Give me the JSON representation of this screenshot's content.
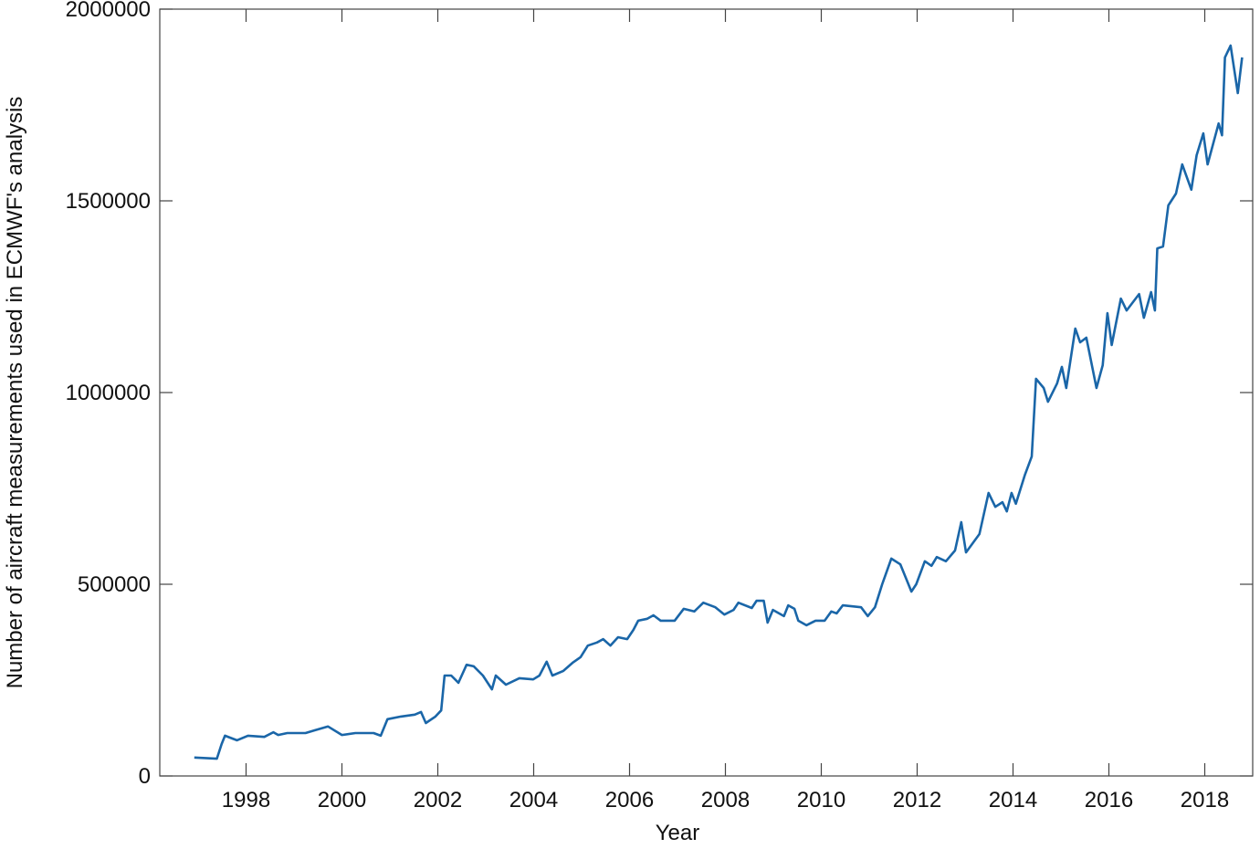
{
  "chart_data": {
    "type": "line",
    "xlabel": "Year",
    "ylabel": "Number of aircraft measurements used in ECMWF's analysis",
    "xlim": [
      1996.2,
      2019
    ],
    "xticks": [
      1998,
      2000,
      2002,
      2004,
      2006,
      2008,
      2010,
      2012,
      2014,
      2016,
      2018
    ],
    "ylim": [
      0,
      2000000
    ],
    "yticks": [
      0,
      500000,
      1000000,
      1500000,
      2000000
    ],
    "series": [
      {
        "color": "#1a66a8",
        "x": [
          1996.92,
          1997.39,
          1997.49,
          1997.56,
          1997.81,
          1998.04,
          1998.38,
          1998.57,
          1998.67,
          1998.86,
          1999.24,
          1999.43,
          1999.71,
          2000.0,
          2000.28,
          2000.66,
          2000.81,
          2000.95,
          2001.23,
          2001.52,
          2001.65,
          2001.75,
          2001.95,
          2002.07,
          2002.14,
          2002.28,
          2002.43,
          2002.6,
          2002.75,
          2002.94,
          2003.13,
          2003.21,
          2003.42,
          2003.7,
          2003.99,
          2004.12,
          2004.27,
          2004.39,
          2004.62,
          2004.81,
          2004.98,
          2005.13,
          2005.32,
          2005.45,
          2005.6,
          2005.76,
          2005.95,
          2006.08,
          2006.18,
          2006.37,
          2006.5,
          2006.65,
          2006.94,
          2007.13,
          2007.35,
          2007.54,
          2007.79,
          2007.98,
          2008.17,
          2008.27,
          2008.55,
          2008.65,
          2008.8,
          2008.88,
          2008.99,
          2009.22,
          2009.31,
          2009.44,
          2009.52,
          2009.69,
          2009.88,
          2010.07,
          2010.21,
          2010.32,
          2010.45,
          2010.83,
          2010.97,
          2011.12,
          2011.27,
          2011.46,
          2011.65,
          2011.88,
          2011.98,
          2012.16,
          2012.3,
          2012.41,
          2012.6,
          2012.79,
          2012.92,
          2013.02,
          2013.3,
          2013.49,
          2013.63,
          2013.78,
          2013.87,
          2013.97,
          2014.06,
          2014.25,
          2014.39,
          2014.48,
          2014.64,
          2014.73,
          2014.92,
          2015.02,
          2015.11,
          2015.3,
          2015.4,
          2015.53,
          2015.74,
          2015.87,
          2015.97,
          2016.06,
          2016.25,
          2016.37,
          2016.63,
          2016.73,
          2016.88,
          2016.96,
          2017.01,
          2017.13,
          2017.24,
          2017.4,
          2017.53,
          2017.72,
          2017.83,
          2017.97,
          2018.06,
          2018.29,
          2018.36,
          2018.42,
          2018.54,
          2018.69,
          2018.78
        ],
        "values": [
          48000,
          45000,
          83000,
          105000,
          93000,
          105000,
          102000,
          114000,
          107000,
          112000,
          112000,
          119000,
          129000,
          107000,
          112000,
          112000,
          105000,
          148000,
          155000,
          160000,
          167000,
          138000,
          155000,
          171000,
          262000,
          262000,
          243000,
          290000,
          286000,
          262000,
          226000,
          262000,
          238000,
          255000,
          252000,
          262000,
          298000,
          262000,
          274000,
          295000,
          310000,
          340000,
          348000,
          357000,
          340000,
          362000,
          357000,
          381000,
          405000,
          410000,
          419000,
          405000,
          405000,
          436000,
          429000,
          452000,
          440000,
          421000,
          433000,
          452000,
          438000,
          457000,
          457000,
          400000,
          433000,
          417000,
          445000,
          436000,
          405000,
          393000,
          405000,
          405000,
          429000,
          424000,
          445000,
          440000,
          417000,
          440000,
          500000,
          567000,
          552000,
          481000,
          500000,
          560000,
          548000,
          571000,
          560000,
          588000,
          662000,
          583000,
          631000,
          738000,
          702000,
          714000,
          690000,
          738000,
          710000,
          786000,
          833000,
          1036000,
          1012000,
          976000,
          1024000,
          1067000,
          1012000,
          1167000,
          1131000,
          1143000,
          1012000,
          1071000,
          1207000,
          1124000,
          1245000,
          1214000,
          1257000,
          1195000,
          1262000,
          1214000,
          1376000,
          1381000,
          1488000,
          1519000,
          1595000,
          1529000,
          1619000,
          1676000,
          1595000,
          1702000,
          1671000,
          1874000,
          1905000,
          1781000,
          1874000
        ]
      }
    ]
  }
}
